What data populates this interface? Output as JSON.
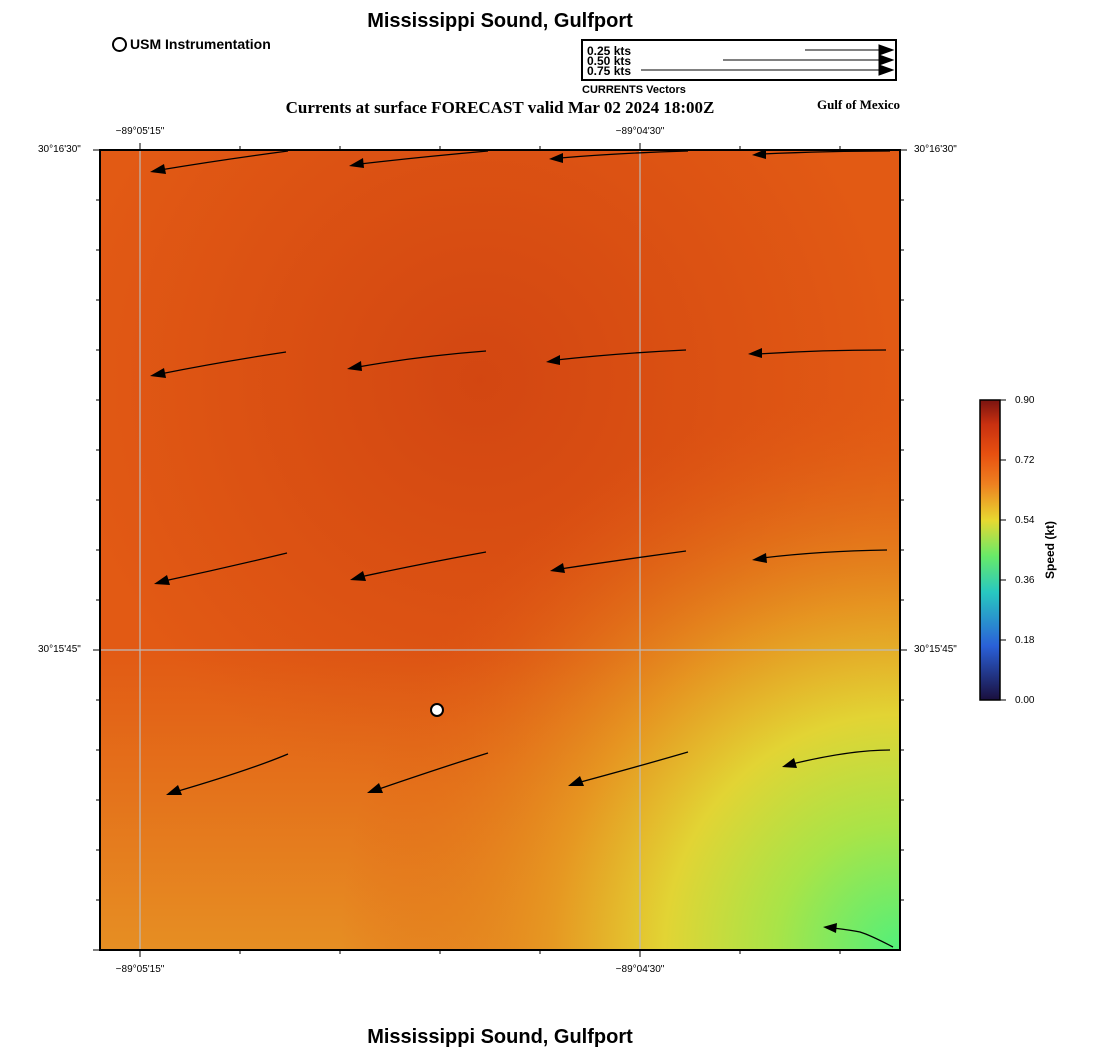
{
  "title": "Mississippi Sound, Gulfport",
  "footer_title": "Mississippi Sound, Gulfport",
  "subtitle": "Currents at surface FORECAST valid Mar 02 2024 18:00Z",
  "region_label": "Gulf of Mexico",
  "station_legend": {
    "label": "USM Instrumentation"
  },
  "vector_legend": {
    "caption": "CURRENTS Vectors",
    "items": [
      {
        "label": "0.25 kts",
        "speed": 0.25
      },
      {
        "label": "0.50 kts",
        "speed": 0.5
      },
      {
        "label": "0.75 kts",
        "speed": 0.75
      }
    ]
  },
  "axes": {
    "top_labels": [
      "−89°05'15\"",
      "−89°04'30\""
    ],
    "bottom_labels": [
      "−89°05'15\"",
      "−89°04'30\""
    ],
    "left_labels": [
      "30°16'30\"",
      "30°15'45\""
    ],
    "right_labels": [
      "30°16'30\"",
      "30°15'45\""
    ]
  },
  "colorbar": {
    "title": "Speed (kt)",
    "ticks": [
      "0.00",
      "0.18",
      "0.36",
      "0.54",
      "0.72",
      "0.90"
    ],
    "colors": [
      "#1a0f3d",
      "#2a60d8",
      "#28c8c0",
      "#68ea68",
      "#e8d830",
      "#ee8020",
      "#e85010",
      "#c83010",
      "#7a1410"
    ]
  },
  "colors": {
    "field_dominant": "#e25a14",
    "field_low": "#5aee78",
    "grid": "#bbbbbb"
  },
  "map_description_values": {
    "speed_range_kt": [
      0.0,
      0.9
    ],
    "typical_speed_kt": 0.72,
    "current_direction": "westward"
  }
}
